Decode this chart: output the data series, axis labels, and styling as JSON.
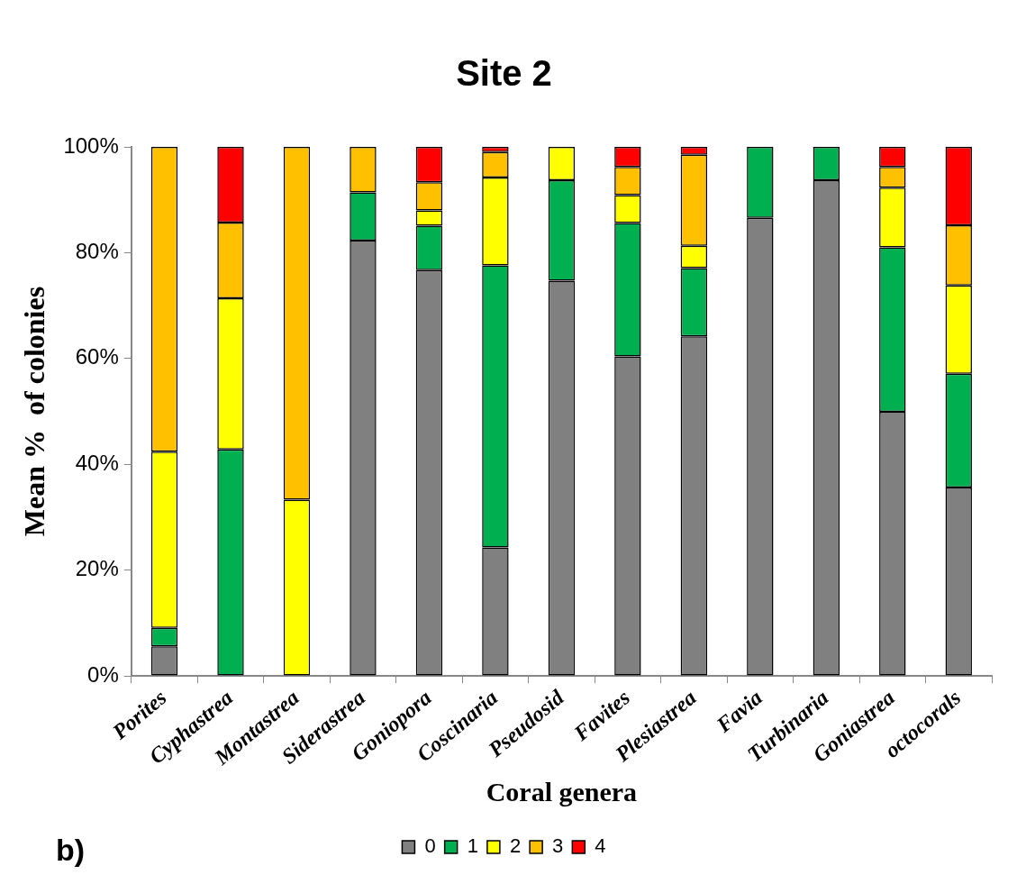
{
  "chart_data": {
    "type": "bar",
    "stacked": true,
    "title": "Site 2",
    "xlabel": "Coral genera",
    "ylabel": "Mean %  of colonies",
    "categories": [
      "Porites",
      "Cyphastrea",
      "Montastrea",
      "Siderastrea",
      "Goniopora",
      "Coscinaria",
      "Pseudosid",
      "Favites",
      "Plesiastrea",
      "Favia",
      "Turbinaria",
      "Goniastrea",
      "octocorals"
    ],
    "series": [
      {
        "name": "0",
        "color": "#808080",
        "values": [
          5.6,
          0,
          0,
          82.3,
          76.7,
          24.3,
          74.7,
          60.4,
          64.2,
          86.6,
          93.7,
          49.9,
          35.6
        ]
      },
      {
        "name": "1",
        "color": "#00b050",
        "values": [
          3.5,
          42.8,
          0,
          9.1,
          8.4,
          53.3,
          19.0,
          25.2,
          12.9,
          13.4,
          6.3,
          31.1,
          21.5
        ]
      },
      {
        "name": "2",
        "color": "#ffff00",
        "values": [
          33.3,
          28.6,
          33.3,
          0,
          2.9,
          16.6,
          6.3,
          5.3,
          4.2,
          0,
          0,
          11.3,
          16.7
        ]
      },
      {
        "name": "3",
        "color": "#ffc000",
        "values": [
          57.6,
          14.3,
          66.7,
          8.6,
          5.3,
          4.8,
          0,
          5.3,
          17.2,
          0,
          0,
          3.9,
          11.4
        ]
      },
      {
        "name": "4",
        "color": "#ff0000",
        "values": [
          0,
          14.3,
          0,
          0,
          6.7,
          1.0,
          0,
          3.8,
          1.5,
          0,
          0,
          3.8,
          14.8
        ]
      }
    ],
    "ylim": [
      0,
      100
    ],
    "yticks": [
      {
        "value": 0,
        "label": "0%"
      },
      {
        "value": 20,
        "label": "20%"
      },
      {
        "value": 40,
        "label": "40%"
      },
      {
        "value": 60,
        "label": "60%"
      },
      {
        "value": 80,
        "label": "80%"
      },
      {
        "value": 100,
        "label": "100%"
      }
    ],
    "grid": false,
    "legend": "bottom",
    "annotations": [
      "b)"
    ]
  }
}
